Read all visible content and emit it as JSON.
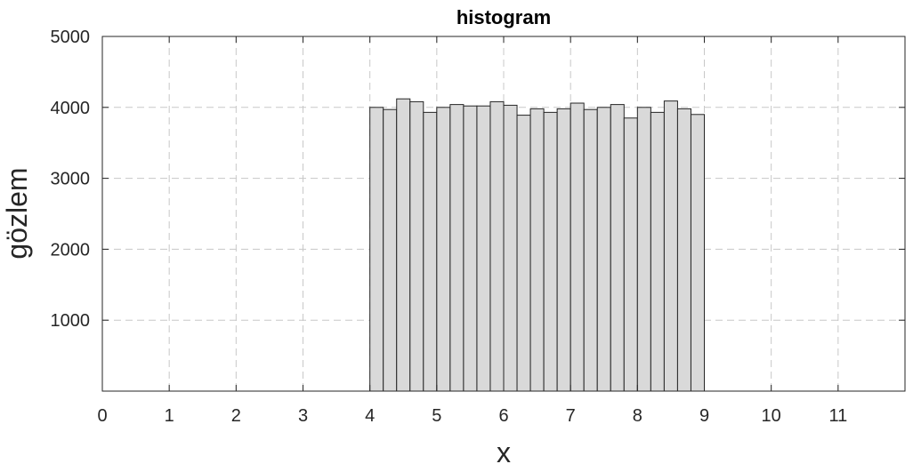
{
  "chart_data": {
    "type": "bar",
    "title": "histogram",
    "xlabel": "x",
    "ylabel": "gözlem",
    "xlim": [
      0,
      12
    ],
    "ylim": [
      0,
      5000
    ],
    "xticks": [
      "0",
      "1",
      "2",
      "3",
      "4",
      "5",
      "6",
      "7",
      "8",
      "9",
      "10",
      "11"
    ],
    "yticks": [
      "1000",
      "2000",
      "3000",
      "4000",
      "5000"
    ],
    "grid": true,
    "bin_edges": [
      4.0,
      4.2,
      4.4,
      4.6,
      4.8,
      5.0,
      5.2,
      5.4,
      5.6,
      5.8,
      6.0,
      6.2,
      6.4,
      6.6,
      6.8,
      7.0,
      7.2,
      7.4,
      7.6,
      7.8,
      8.0,
      8.2,
      8.4,
      8.6,
      8.8,
      9.0
    ],
    "values": [
      4000,
      3970,
      4120,
      4080,
      3930,
      4000,
      4040,
      4020,
      4020,
      4080,
      4030,
      3890,
      3980,
      3930,
      3980,
      4060,
      3970,
      4000,
      4040,
      3850,
      4000,
      3930,
      4090,
      3980,
      3900
    ],
    "colors": {
      "bar_fill": "#d9d9d9",
      "bar_edge": "#262626",
      "grid": "#c8c8c8",
      "axis": "#262626"
    }
  }
}
